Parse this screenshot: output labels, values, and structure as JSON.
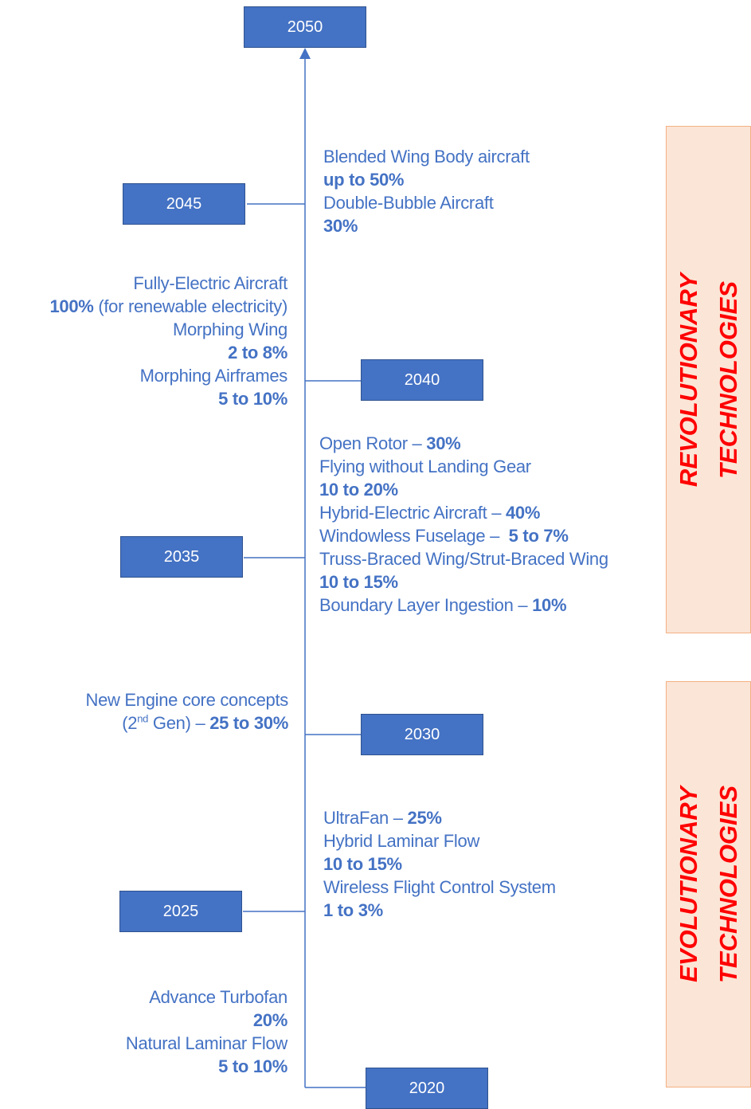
{
  "milestones": [
    "2050",
    "2045",
    "2040",
    "2035",
    "2030",
    "2025",
    "2020"
  ],
  "notes": [
    {
      "lines": [
        [
          {
            "text": "Blended Wing Body aircraft"
          }
        ],
        [
          {
            "text": "up to 50%",
            "bold": true
          }
        ],
        [
          {
            "text": "Double-Bubble Aircraft"
          }
        ],
        [
          {
            "text": "30%",
            "bold": true
          }
        ]
      ]
    },
    {
      "lines": [
        [
          {
            "text": "Fully-Electric Aircraft"
          }
        ],
        [
          {
            "text": "100%",
            "bold": true
          },
          {
            "text": " (for renewable electricity)"
          }
        ],
        [
          {
            "text": "Morphing Wing"
          }
        ],
        [
          {
            "text": "2 to 8%",
            "bold": true
          }
        ],
        [
          {
            "text": "Morphing Airframes"
          }
        ],
        [
          {
            "text": "5 to 10%",
            "bold": true
          }
        ]
      ]
    },
    {
      "lines": [
        [
          {
            "text": "Open Rotor – "
          },
          {
            "text": "30%",
            "bold": true
          }
        ],
        [
          {
            "text": "Flying without Landing Gear"
          }
        ],
        [
          {
            "text": "10 to 20%",
            "bold": true
          }
        ],
        [
          {
            "text": "Hybrid-Electric Aircraft – "
          },
          {
            "text": "40%",
            "bold": true
          }
        ],
        [
          {
            "text": "Windowless Fuselage –  "
          },
          {
            "text": "5 to 7%",
            "bold": true
          }
        ],
        [
          {
            "text": "Truss-Braced Wing/Strut-Braced Wing"
          }
        ],
        [
          {
            "text": "10 to 15%",
            "bold": true
          }
        ],
        [
          {
            "text": "Boundary Layer Ingestion – "
          },
          {
            "text": "10%",
            "bold": true
          }
        ]
      ]
    },
    {
      "lines": [
        [
          {
            "text": "New Engine core concepts"
          }
        ],
        [
          {
            "text": "(2"
          },
          {
            "text": "nd",
            "sup": true
          },
          {
            "text": " Gen) – "
          },
          {
            "text": "25 to 30%",
            "bold": true
          }
        ]
      ]
    },
    {
      "lines": [
        [
          {
            "text": "UltraFan – "
          },
          {
            "text": "25%",
            "bold": true
          }
        ],
        [
          {
            "text": "Hybrid Laminar Flow"
          }
        ],
        [
          {
            "text": "10 to 15%",
            "bold": true
          }
        ],
        [
          {
            "text": "Wireless Flight Control System"
          }
        ],
        [
          {
            "text": "1 to 3%",
            "bold": true
          }
        ]
      ]
    },
    {
      "lines": [
        [
          {
            "text": "Advance Turbofan"
          }
        ],
        [
          {
            "text": "20%",
            "bold": true
          }
        ],
        [
          {
            "text": "Natural Laminar Flow"
          }
        ],
        [
          {
            "text": "5 to 10%",
            "bold": true
          }
        ]
      ]
    }
  ],
  "bands": [
    {
      "lines": [
        "REVOLUTIONARY",
        "TECHNOLOGIES"
      ]
    },
    {
      "lines": [
        "EVOLUTIONARY",
        "TECHNOLOGIES"
      ]
    }
  ]
}
